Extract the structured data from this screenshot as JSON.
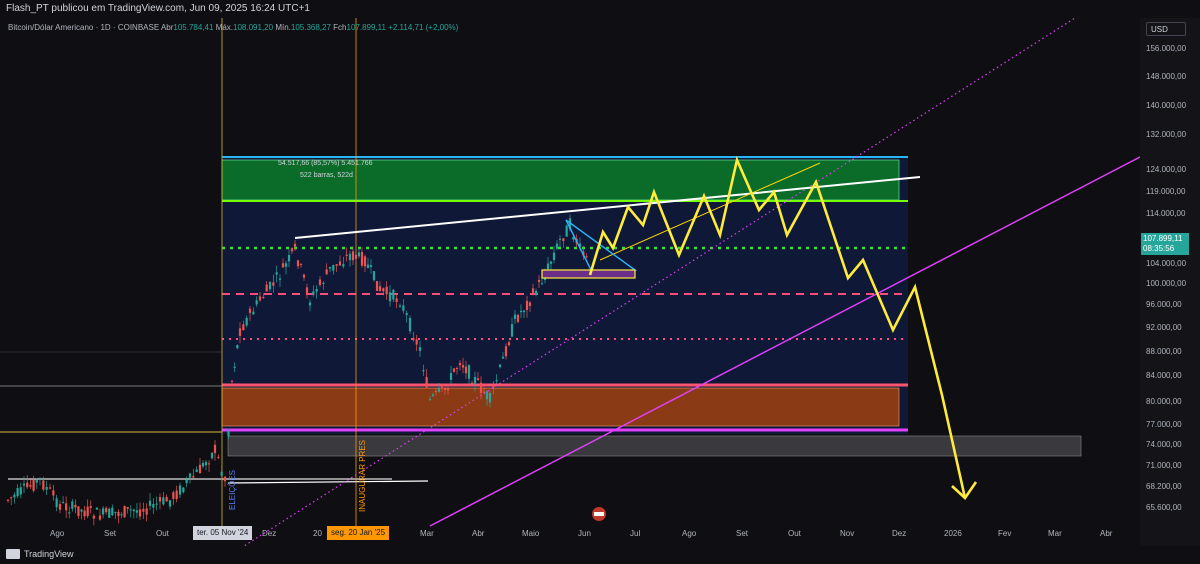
{
  "header": {
    "publish_text": "Flash_PT publicou em TradingView.com, Jun 09, 2025 16:24 UTC+1"
  },
  "legend": {
    "symbol": "Bitcoin/Dólar Americano · 1D · COINBASE",
    "open_label": "Abr",
    "open_value": "105.784,41",
    "high_label": "Máx.",
    "high_value": "108.091,20",
    "low_label": "Mín.",
    "low_value": "105.368,27",
    "close_label": "Fch",
    "close_value": "107.899,11",
    "change_value": "+2.114,71 (+2,00%)"
  },
  "price_axis": {
    "currency": "USD",
    "labels": [
      "156.000,00",
      "148.000,00",
      "140.000,00",
      "132.000,00",
      "124.000,00",
      "119.000,00",
      "114.000,00",
      "104.000,00",
      "100.000,00",
      "96.000,00",
      "92.000,00",
      "88.000,00",
      "84.000,00",
      "80.000,00",
      "77.000,00",
      "74.000,00",
      "71.000,00",
      "68.200,00",
      "65.600,00"
    ],
    "current_price": "107.899,11",
    "countdown": "08:35:56"
  },
  "time_axis": {
    "labels": [
      "Ago",
      "Set",
      "Out",
      "Dez",
      "Mar",
      "Abr",
      "Maio",
      "Jun",
      "Jul",
      "Ago",
      "Set",
      "Out",
      "Nov",
      "Dez",
      "2026",
      "Fev",
      "Mar",
      "Abr"
    ],
    "tag_election": "ter. 05 Nov '24",
    "tag_inauguration": "seg. 20 Jan '25",
    "partial_label": "20"
  },
  "annotations": {
    "range_stats": "54.517,66 (85,57%) 5.451.766",
    "range_bars": "522 barras, 522d",
    "vertical_election": "ELEIÇÕES",
    "vertical_inauguration": "INAUGURAR PRES"
  },
  "footer": {
    "brand": "TradingView"
  },
  "colors": {
    "background": "#0f0f13",
    "up": "#26a69a",
    "down": "#ef5350",
    "zone_green": "#0e7a2e",
    "zone_orange": "#a0461a",
    "projection": "#ffeb3b",
    "channel": "#e040fb"
  }
}
